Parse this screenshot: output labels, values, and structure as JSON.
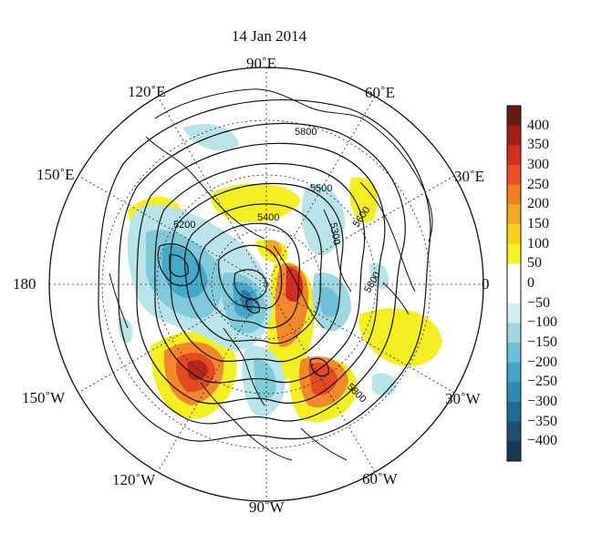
{
  "title": "14 Jan 2014",
  "longitude_labels": {
    "e90": "90˚E",
    "e60": "60˚E",
    "e30": "30˚E",
    "zero": "0",
    "w30": "30˚W",
    "w60": "60˚W",
    "w90": "90˚W",
    "w120": "120˚W",
    "w150": "150˚W",
    "d180": "180",
    "e150": "150˚E",
    "e120": "120˚E"
  },
  "contour_labels": [
    "5800",
    "5500",
    "5400",
    "5300",
    "5600",
    "5800",
    "5200",
    "5800"
  ],
  "colorbar": {
    "ticks": [
      "400",
      "350",
      "300",
      "250",
      "200",
      "150",
      "100",
      "50",
      "0",
      "−50",
      "−100",
      "−150",
      "−200",
      "−250",
      "−300",
      "−350",
      "−400"
    ],
    "colors": [
      "#6b1a0f",
      "#a31f16",
      "#d2301e",
      "#ec4d22",
      "#f27d22",
      "#f5a623",
      "#f7d21c",
      "#f5f320",
      "#ffffff",
      "#ffffff",
      "#d2eef0",
      "#9fd8e0",
      "#6fc0d6",
      "#3fa6c9",
      "#2a8ab2",
      "#1f6d93",
      "#1d4f73",
      "#183a57"
    ]
  }
}
